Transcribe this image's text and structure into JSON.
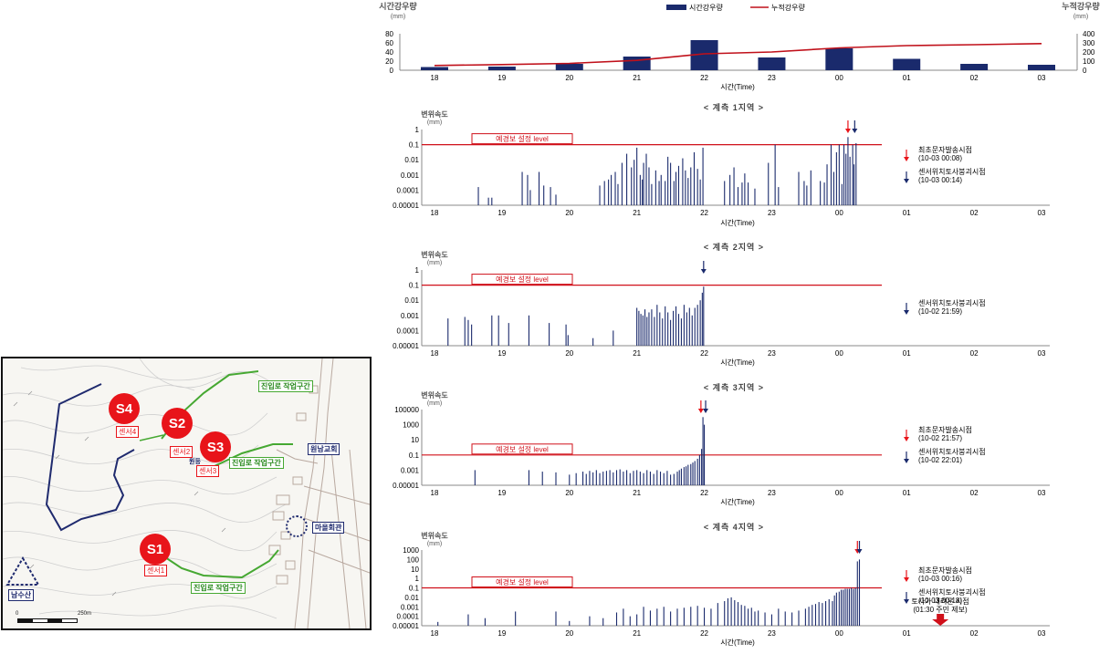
{
  "map": {
    "sensors": [
      {
        "badge": "S4",
        "label": "센서4"
      },
      {
        "badge": "S2",
        "label": "센서2"
      },
      {
        "badge": "S3",
        "label": "센서3"
      },
      {
        "badge": "S1",
        "label": "센서1"
      }
    ],
    "labels": {
      "road_upper": "진입로 작업구간",
      "road_mid": "진입로 작업구간",
      "road_lower": "진입로 작업구간",
      "church": "원남교회",
      "village_hall": "마을회관",
      "mountain": "남수산",
      "scale_zero": "0",
      "scale_end": "250m",
      "village_small": "원등"
    },
    "colors": {
      "boundary": "#1f2a6e",
      "road": "#46a832",
      "sensor": "#e8141a",
      "label_box": "#e8141a"
    }
  },
  "chart_data": [
    {
      "type": "bar",
      "id": "rainfall",
      "left_axis_label": "시간강우량",
      "left_axis_unit": "(mm)",
      "right_axis_label": "누적강우량",
      "right_axis_unit": "(mm)",
      "xlabel": "시간(Time)",
      "categories": [
        "18",
        "19",
        "20",
        "21",
        "22",
        "23",
        "00",
        "01",
        "02",
        "03"
      ],
      "ylim": [
        0,
        80
      ],
      "yticks": [
        0,
        20,
        40,
        60,
        80
      ],
      "y2lim": [
        0,
        400
      ],
      "y2ticks": [
        0,
        100,
        200,
        300,
        400
      ],
      "series": [
        {
          "name": "시간강우량",
          "kind": "bar",
          "color": "#1a2a6c",
          "values": [
            7,
            8,
            14,
            30,
            66,
            28,
            48,
            25,
            14,
            12
          ]
        },
        {
          "name": "누적강우량",
          "kind": "line",
          "color": "#c0101a",
          "values": [
            52,
            62,
            75,
            108,
            180,
            200,
            245,
            270,
            280,
            292
          ]
        }
      ],
      "grid": false,
      "legend_position": "top-center"
    },
    {
      "type": "bar",
      "id": "zone1",
      "title": "< 계측 1지역 >",
      "ylabel": "변위속도",
      "yunit": "(mm)",
      "xlabel": "시간(Time)",
      "yscale": "log",
      "yticks": [
        "1",
        "0.1",
        "0.01",
        "0.001",
        "0.0001",
        "0.00001"
      ],
      "ytick_exponents": [
        0,
        -1,
        -2,
        -3,
        -4,
        -5
      ],
      "ymin_exp": -5,
      "ymax_exp": 0,
      "xticks": [
        "18",
        "19",
        "20",
        "21",
        "22",
        "23",
        "00",
        "01",
        "02",
        "03"
      ],
      "threshold": {
        "label": "예경보 설정 level",
        "value": 0.1
      },
      "bars_x": [
        18.65,
        18.8,
        18.85,
        19.3,
        19.38,
        19.42,
        19.55,
        19.62,
        19.72,
        19.8,
        20.45,
        20.52,
        20.58,
        20.62,
        20.68,
        20.72,
        20.78,
        20.85,
        20.92,
        20.96,
        21.0,
        21.05,
        21.08,
        21.1,
        21.14,
        21.18,
        21.22,
        21.28,
        21.33,
        21.36,
        21.42,
        21.46,
        21.5,
        21.55,
        21.58,
        21.62,
        21.68,
        21.72,
        21.76,
        21.8,
        21.85,
        21.9,
        21.94,
        21.98,
        22.3,
        22.38,
        22.44,
        22.5,
        22.56,
        22.6,
        22.65,
        22.75,
        22.95,
        23.05,
        23.1,
        23.4,
        23.48,
        23.52,
        23.58,
        23.72,
        23.78,
        23.82,
        23.88,
        23.92,
        23.96,
        24.0,
        24.04,
        24.07,
        24.1,
        24.13,
        24.16,
        24.2,
        24.22,
        24.25
      ],
      "bars_exp": [
        -3.8,
        -4.5,
        -4.5,
        -2.8,
        -3,
        -4,
        -2.8,
        -3.7,
        -3.8,
        -4.3,
        -3.7,
        -3.4,
        -3.3,
        -3,
        -2.8,
        -3.6,
        -2.2,
        -1.6,
        -2.5,
        -2,
        -1.2,
        -3,
        -3.3,
        -2.2,
        -1.6,
        -2.5,
        -3.6,
        -2.7,
        -3.4,
        -3,
        -3.4,
        -1.8,
        -2.2,
        -3.4,
        -2.8,
        -2.4,
        -1.9,
        -2.7,
        -3.2,
        -2.5,
        -1.5,
        -2.6,
        -3.3,
        -1.2,
        -3.4,
        -3,
        -2.5,
        -3.8,
        -3.5,
        -2.9,
        -3.5,
        -3.9,
        -2.2,
        -1.0,
        -3.8,
        -2.8,
        -3.4,
        -3.7,
        -2.7,
        -3.4,
        -3.5,
        -2.3,
        -1,
        -2.8,
        -1.5,
        -1,
        -3.6,
        -1,
        -1.6,
        -0.5,
        -1.8,
        -1.0,
        -2.3,
        -0.9
      ],
      "arrows": [
        {
          "legend": "최초문자발송시점",
          "time": "(10-03 00:08)",
          "x": 24.13,
          "color": "#e8141a"
        },
        {
          "legend": "센서위치토사붕괴시점",
          "time": "(10-03 00:14)",
          "x": 24.23,
          "color": "#1a2a6c"
        }
      ]
    },
    {
      "type": "bar",
      "id": "zone2",
      "title": "< 계측 2지역 >",
      "ylabel": "변위속도",
      "yunit": "(mm)",
      "xlabel": "시간(Time)",
      "yscale": "log",
      "yticks": [
        "1",
        "0.1",
        "0.01",
        "0.001",
        "0.0001",
        "0.00001"
      ],
      "ytick_exponents": [
        0,
        -1,
        -2,
        -3,
        -4,
        -5
      ],
      "ymin_exp": -5,
      "ymax_exp": 0,
      "xticks": [
        "18",
        "19",
        "20",
        "21",
        "22",
        "23",
        "00",
        "01",
        "02",
        "03"
      ],
      "threshold": {
        "label": "예경보 설정 level",
        "value": 0.1
      },
      "bars_x": [
        18.2,
        18.45,
        18.5,
        18.55,
        18.85,
        18.95,
        19.1,
        19.4,
        19.7,
        19.95,
        19.98,
        20.35,
        20.65,
        21.0,
        21.03,
        21.06,
        21.09,
        21.12,
        21.15,
        21.18,
        21.22,
        21.26,
        21.3,
        21.34,
        21.38,
        21.42,
        21.46,
        21.5,
        21.54,
        21.58,
        21.62,
        21.66,
        21.7,
        21.74,
        21.78,
        21.82,
        21.86,
        21.9,
        21.94,
        21.97,
        21.99
      ],
      "bars_exp": [
        -3.2,
        -3.1,
        -3.3,
        -3.6,
        -3,
        -3,
        -3.5,
        -3,
        -3.5,
        -3.6,
        -4.3,
        -4.5,
        -4,
        -2.5,
        -2.7,
        -2.9,
        -3,
        -2.6,
        -3.1,
        -2.8,
        -2.6,
        -3.1,
        -2.3,
        -2.8,
        -3.2,
        -2.4,
        -2.8,
        -3.3,
        -2.7,
        -2.4,
        -2.9,
        -3.2,
        -2.3,
        -2.8,
        -2.5,
        -3,
        -2.5,
        -2.3,
        -2,
        -1.5,
        -1.1
      ],
      "arrows": [
        {
          "legend": "센서위치토사붕괴시점",
          "time": "(10-02 21:59)",
          "x": 21.99,
          "color": "#1a2a6c"
        }
      ]
    },
    {
      "type": "bar",
      "id": "zone3",
      "title": "< 계측 3지역 >",
      "ylabel": "변위속도",
      "yunit": "(mm)",
      "xlabel": "시간(Time)",
      "yscale": "log",
      "yticks": [
        "100000",
        "1000",
        "10",
        "0.1",
        "0.001",
        "0.00001"
      ],
      "ytick_exponents": [
        5,
        3,
        1,
        -1,
        -3,
        -5
      ],
      "ymin_exp": -5,
      "ymax_exp": 5,
      "xticks": [
        "18",
        "19",
        "20",
        "21",
        "22",
        "23",
        "00",
        "01",
        "02",
        "03"
      ],
      "threshold": {
        "label": "예경보 설정 level",
        "value": 0.1
      },
      "bars_x": [
        18.6,
        19.4,
        19.6,
        19.8,
        20.0,
        20.1,
        20.2,
        20.25,
        20.3,
        20.35,
        20.4,
        20.45,
        20.5,
        20.55,
        20.6,
        20.65,
        20.7,
        20.75,
        20.8,
        20.85,
        20.9,
        20.95,
        21.0,
        21.05,
        21.1,
        21.15,
        21.2,
        21.25,
        21.3,
        21.35,
        21.4,
        21.45,
        21.5,
        21.55,
        21.6,
        21.63,
        21.66,
        21.7,
        21.73,
        21.76,
        21.8,
        21.83,
        21.86,
        21.9,
        21.93,
        21.96,
        21.98,
        22.0
      ],
      "bars_exp": [
        -3,
        -3,
        -3.2,
        -3.3,
        -3.6,
        -3.4,
        -3.2,
        -3.5,
        -3.1,
        -3.3,
        -3,
        -3.4,
        -3.2,
        -3.1,
        -3,
        -3.3,
        -3,
        -2.9,
        -3.2,
        -3,
        -3.4,
        -3.1,
        -3,
        -3.2,
        -3.4,
        -3,
        -3.2,
        -3.5,
        -3,
        -3.2,
        -3.4,
        -3.1,
        -3.6,
        -3.5,
        -3.2,
        -3,
        -2.8,
        -2.6,
        -2.5,
        -2.3,
        -2.2,
        -2,
        -1.8,
        -1.5,
        -1,
        -0.2,
        4,
        3
      ],
      "arrows": [
        {
          "legend": "최초문자발송시점",
          "time": "(10-02 21:57)",
          "x": 21.95,
          "color": "#e8141a"
        },
        {
          "legend": "센서위치토사붕괴시점",
          "time": "(10-02 22:01)",
          "x": 22.02,
          "color": "#1a2a6c"
        }
      ]
    },
    {
      "type": "bar",
      "id": "zone4",
      "title": "< 계측 4지역 >",
      "ylabel": "변위속도",
      "yunit": "(mm)",
      "xlabel": "시간(Time)",
      "yscale": "log",
      "yticks": [
        "1000",
        "100",
        "10",
        "1",
        "0.1",
        "0.01",
        "0.001",
        "0.0001",
        "0.00001"
      ],
      "ytick_exponents": [
        3,
        2,
        1,
        0,
        -1,
        -2,
        -3,
        -4,
        -5
      ],
      "ymin_exp": -5,
      "ymax_exp": 3,
      "xticks": [
        "18",
        "19",
        "20",
        "21",
        "22",
        "23",
        "00",
        "01",
        "02",
        "03"
      ],
      "threshold": {
        "label": "예경보 설정 level",
        "value": 0.1
      },
      "bars_x": [
        18.05,
        18.5,
        18.75,
        19.2,
        19.8,
        20.0,
        20.3,
        20.5,
        20.7,
        20.8,
        20.9,
        21.0,
        21.1,
        21.2,
        21.3,
        21.4,
        21.5,
        21.6,
        21.7,
        21.8,
        21.9,
        22.0,
        22.1,
        22.2,
        22.3,
        22.35,
        22.4,
        22.45,
        22.5,
        22.55,
        22.6,
        22.65,
        22.7,
        22.75,
        22.8,
        22.9,
        23.0,
        23.1,
        23.2,
        23.3,
        23.4,
        23.5,
        23.55,
        23.6,
        23.65,
        23.7,
        23.75,
        23.8,
        23.85,
        23.9,
        23.93,
        23.96,
        24.0,
        24.03,
        24.06,
        24.09,
        24.12,
        24.15,
        24.18,
        24.21,
        24.24,
        24.27,
        24.3
      ],
      "bars_exp": [
        -4.6,
        -3.8,
        -4.2,
        -3.5,
        -3.5,
        -4.5,
        -4,
        -4.2,
        -3.6,
        -3.2,
        -4,
        -3.8,
        -3,
        -3.4,
        -3.2,
        -3,
        -3.5,
        -3.2,
        -3.1,
        -3,
        -2.9,
        -3.1,
        -3.2,
        -2.6,
        -2.4,
        -2.1,
        -2,
        -2.3,
        -2.5,
        -2.8,
        -2.9,
        -3.2,
        -3.1,
        -3.5,
        -3.4,
        -3.6,
        -3.8,
        -3.2,
        -3.5,
        -3.6,
        -3.4,
        -3.2,
        -3,
        -2.8,
        -2.7,
        -2.5,
        -2.6,
        -2.4,
        -2.2,
        -2.4,
        -1.8,
        -1.5,
        -1.4,
        -1.2,
        -1.2,
        -1.1,
        -1.1,
        -1.1,
        -1.0,
        -1.1,
        -1.0,
        1.8,
        2.0
      ],
      "arrows": [
        {
          "legend": "최초문자발송시점",
          "time": "(10-03 00:16)",
          "x": 24.27,
          "color": "#e8141a"
        },
        {
          "legend": "센서위치토사붕괴시점",
          "time": "(10-03 00:18)",
          "x": 24.3,
          "color": "#1a2a6c"
        }
      ],
      "note": {
        "line1": "토사가 내려온 시점",
        "line2": "(01:30 주민 제보)",
        "x": 25.5
      }
    }
  ]
}
